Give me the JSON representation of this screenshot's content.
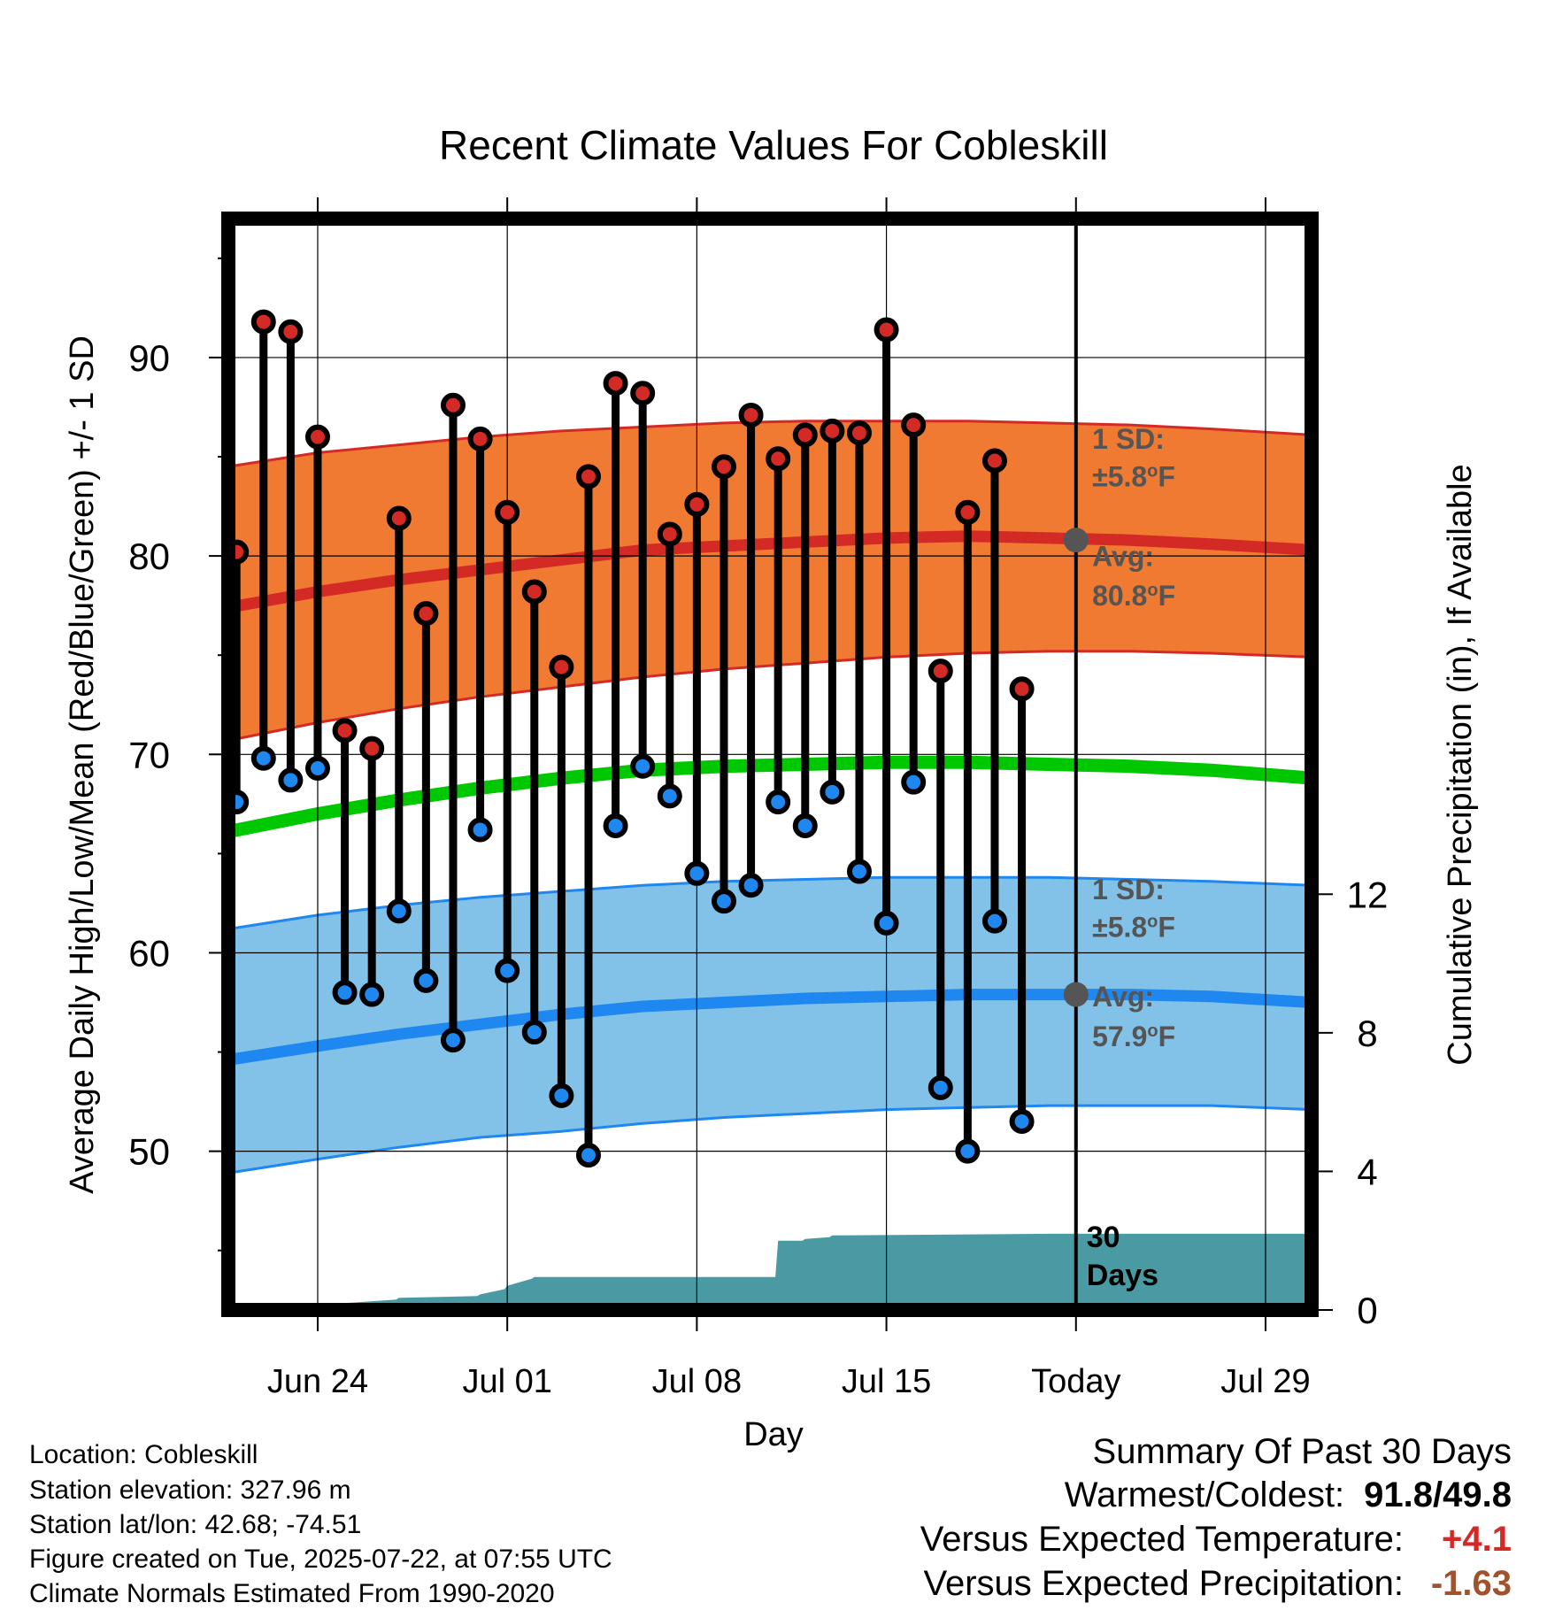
{
  "chart_data": {
    "type": "line",
    "title": "Recent Climate Values For Cobleskill",
    "xlabel": "Day",
    "ylabel": "Average Daily High/Low/Mean (Red/Blue/Green) +/- 1 SD",
    "y2label": "Cumulative Precipitation (in), If Available",
    "ylim": [
      42,
      97
    ],
    "y2lim": [
      0,
      31.5
    ],
    "yticks": [
      50,
      60,
      70,
      80,
      90
    ],
    "y2ticks": [
      0,
      4,
      8,
      12
    ],
    "xlim": [
      -1.3,
      38.7
    ],
    "xtick_positions": [
      2,
      9,
      16,
      23,
      30,
      37
    ],
    "xticks": [
      "Jun 24",
      "Jul 01",
      "Jul 08",
      "Jul 15",
      "Today",
      "Jul 29"
    ],
    "grid": true,
    "today_index": 30,
    "days_label": "30\nDays",
    "normals": {
      "x": [
        -1.3,
        2,
        5,
        8,
        11,
        14,
        17,
        20,
        23,
        26,
        29,
        32,
        35,
        38.7
      ],
      "high_mean": [
        77.4,
        78.2,
        78.8,
        79.3,
        79.8,
        80.3,
        80.5,
        80.7,
        80.9,
        81.0,
        80.9,
        80.8,
        80.6,
        80.3
      ],
      "high_upper": [
        84.5,
        85.2,
        85.6,
        86.0,
        86.3,
        86.5,
        86.7,
        86.8,
        86.8,
        86.8,
        86.7,
        86.6,
        86.4,
        86.1
      ],
      "high_lower": [
        70.7,
        71.6,
        72.3,
        72.9,
        73.4,
        73.9,
        74.3,
        74.6,
        74.9,
        75.1,
        75.2,
        75.2,
        75.1,
        74.9
      ],
      "low_mean": [
        54.6,
        55.3,
        55.9,
        56.4,
        56.9,
        57.3,
        57.5,
        57.7,
        57.8,
        57.9,
        57.9,
        57.9,
        57.8,
        57.5
      ],
      "low_upper": [
        61.2,
        61.9,
        62.4,
        62.8,
        63.1,
        63.4,
        63.6,
        63.7,
        63.8,
        63.8,
        63.8,
        63.7,
        63.6,
        63.4
      ],
      "low_lower": [
        48.9,
        49.6,
        50.2,
        50.7,
        51.0,
        51.4,
        51.7,
        51.9,
        52.1,
        52.2,
        52.3,
        52.3,
        52.3,
        52.1
      ],
      "mean": [
        66.1,
        67.0,
        67.7,
        68.3,
        68.8,
        69.2,
        69.4,
        69.5,
        69.6,
        69.6,
        69.5,
        69.4,
        69.2,
        68.8
      ]
    },
    "series": [
      {
        "name": "Daily High",
        "x": [
          -1,
          0,
          1,
          2,
          3,
          4,
          5,
          6,
          7,
          8,
          9,
          10,
          11,
          12,
          13,
          14,
          15,
          16,
          17,
          18,
          19,
          20,
          21,
          22,
          23,
          24,
          25,
          26,
          27,
          28,
          29
        ],
        "values": [
          80.2,
          91.8,
          91.3,
          86.0,
          71.2,
          70.3,
          81.9,
          77.1,
          87.6,
          85.9,
          82.2,
          78.2,
          74.4,
          84.0,
          88.7,
          88.2,
          81.1,
          82.6,
          84.5,
          87.1,
          84.9,
          86.1,
          86.3,
          86.2,
          91.4,
          86.6,
          74.2,
          82.2,
          84.8,
          73.3,
          null
        ]
      },
      {
        "name": "Daily Low",
        "x": [
          -1,
          0,
          1,
          2,
          3,
          4,
          5,
          6,
          7,
          8,
          9,
          10,
          11,
          12,
          13,
          14,
          15,
          16,
          17,
          18,
          19,
          20,
          21,
          22,
          23,
          24,
          25,
          26,
          27,
          28,
          29
        ],
        "values": [
          67.6,
          69.8,
          68.7,
          69.3,
          58.0,
          57.9,
          62.1,
          58.6,
          55.6,
          66.2,
          59.1,
          56.0,
          52.8,
          49.8,
          66.4,
          69.4,
          67.9,
          64.0,
          62.6,
          63.4,
          67.6,
          66.4,
          68.1,
          64.1,
          61.5,
          68.6,
          53.2,
          50.0,
          61.6,
          51.5,
          null
        ]
      }
    ],
    "precipitation": {
      "x": [
        -1.0,
        -0.5,
        1.9,
        2.1,
        3.0,
        4.9,
        5.0,
        7.9,
        8.0,
        8.9,
        9.0,
        9.9,
        10.0,
        10.9,
        11.0,
        18.9,
        19.0,
        19.9,
        20.0,
        20.9,
        21.0,
        29.0,
        38.7
      ],
      "values": [
        0.0,
        0.15,
        0.15,
        0.2,
        0.2,
        0.3,
        0.35,
        0.4,
        0.45,
        0.6,
        0.7,
        0.9,
        0.95,
        0.95,
        0.95,
        0.95,
        2.0,
        2.0,
        2.05,
        2.1,
        2.15,
        2.2,
        2.2
      ]
    },
    "annotations": [
      {
        "text": "1 SD:",
        "x": 30.6,
        "y": 85.4
      },
      {
        "text": "±5.8",
        "x": 30.6,
        "y": 83.5,
        "sup": "o",
        "unit": "F"
      },
      {
        "text": "Avg:",
        "x": 30.6,
        "y": 79.5
      },
      {
        "text": "80.8",
        "x": 30.6,
        "y": 77.5,
        "sup": "o",
        "unit": "F"
      },
      {
        "text": "1 SD:",
        "x": 30.6,
        "y": 62.7
      },
      {
        "text": "±5.8",
        "x": 30.6,
        "y": 60.8,
        "sup": "o",
        "unit": "F"
      },
      {
        "text": "Avg:",
        "x": 30.6,
        "y": 57.3
      },
      {
        "text": "57.9",
        "x": 30.6,
        "y": 55.3,
        "sup": "o",
        "unit": "F"
      }
    ],
    "today_markers": [
      80.8,
      57.9
    ],
    "colors": {
      "high_band": "#f07a32",
      "high_line": "#d42a26",
      "low_band": "#82c1e8",
      "low_line": "#1e87f0",
      "mean_line": "#00c800",
      "precip": "#4a9aa3",
      "high_dot": "#d42a26",
      "low_dot": "#1e87f0",
      "annotation": "#555555"
    }
  },
  "footer": {
    "location": "Location: Cobleskill",
    "elevation": "Station elevation: 327.96 m",
    "latlon": "Station lat/lon: 42.68; -74.51",
    "created": "Figure created on Tue, 2025-07-22, at 07:55 UTC",
    "normals": "Climate Normals Estimated From 1990-2020"
  },
  "summary": {
    "heading": "Summary Of Past 30 Days",
    "warm_cold_label": "Warmest/Coldest:",
    "warm_cold_value": "91.8/49.8",
    "temp_label": "Versus Expected Temperature:",
    "temp_value": "+4.1",
    "temp_color": "#d42a26",
    "precip_label": "Versus Expected Precipitation:",
    "precip_value": "-1.63",
    "precip_color": "#a0522d"
  }
}
